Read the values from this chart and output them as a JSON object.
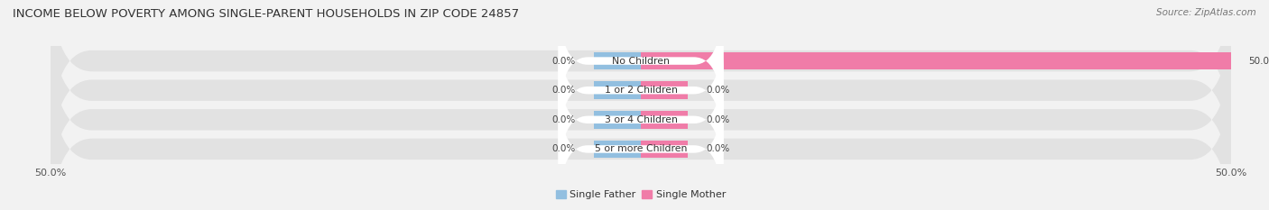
{
  "title": "INCOME BELOW POVERTY AMONG SINGLE-PARENT HOUSEHOLDS IN ZIP CODE 24857",
  "source": "Source: ZipAtlas.com",
  "categories": [
    "No Children",
    "1 or 2 Children",
    "3 or 4 Children",
    "5 or more Children"
  ],
  "single_father_values": [
    0.0,
    0.0,
    0.0,
    0.0
  ],
  "single_mother_values": [
    50.0,
    0.0,
    0.0,
    0.0
  ],
  "max_val": 50.0,
  "father_color": "#92bfe0",
  "mother_color": "#f07ca8",
  "bg_color": "#f2f2f2",
  "bar_bg_color": "#e2e2e2",
  "label_bg_color": "#ffffff",
  "title_fontsize": 9.5,
  "source_fontsize": 7.5,
  "label_fontsize": 7.8,
  "value_fontsize": 7.5,
  "tick_fontsize": 8,
  "legend_fontsize": 8
}
